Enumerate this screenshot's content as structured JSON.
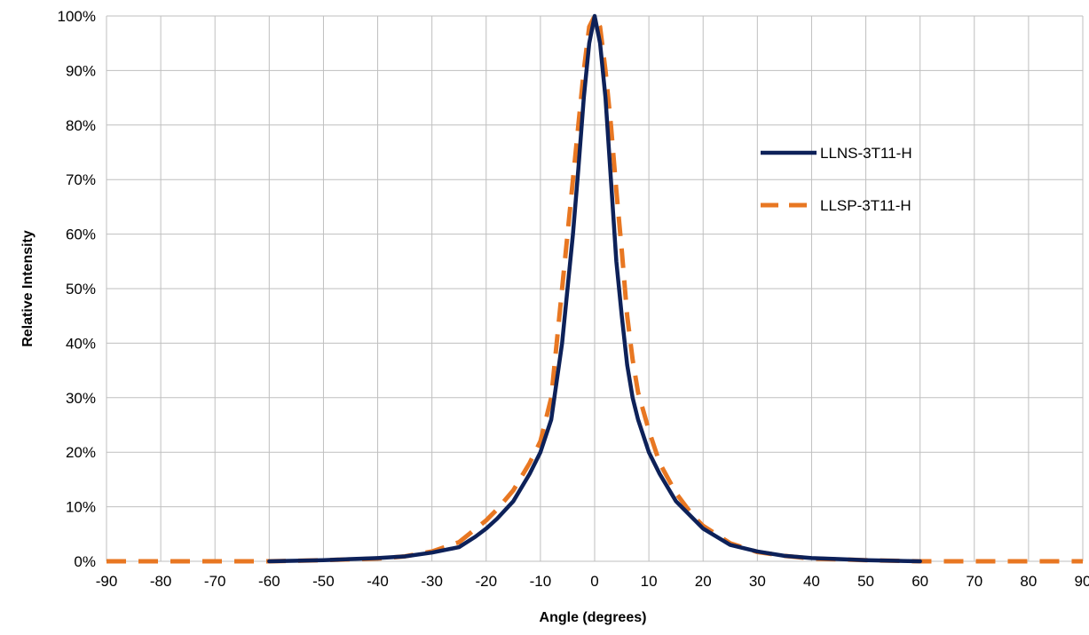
{
  "chart_data": {
    "type": "line",
    "title": "",
    "xlabel": "Angle (degrees)",
    "ylabel": "Relative Intensity",
    "xlim": [
      -90,
      90
    ],
    "ylim": [
      0,
      100
    ],
    "x_ticks": [
      "-90",
      "-80",
      "-70",
      "-60",
      "-50",
      "-40",
      "-30",
      "-20",
      "-10",
      "0",
      "10",
      "20",
      "30",
      "40",
      "50",
      "60",
      "70",
      "80",
      "90"
    ],
    "y_ticks": [
      "0%",
      "10%",
      "20%",
      "30%",
      "40%",
      "50%",
      "60%",
      "70%",
      "80%",
      "90%",
      "100%"
    ],
    "grid": true,
    "legend_position": "right",
    "series": [
      {
        "name": "LLNS-3T11-H",
        "color": "#0d2159",
        "style": "solid",
        "points": [
          [
            -60,
            0.0
          ],
          [
            -55,
            0.1
          ],
          [
            -50,
            0.2
          ],
          [
            -45,
            0.4
          ],
          [
            -40,
            0.6
          ],
          [
            -35,
            0.9
          ],
          [
            -30,
            1.6
          ],
          [
            -25,
            2.6
          ],
          [
            -22,
            4.5
          ],
          [
            -20,
            6.0
          ],
          [
            -18,
            7.8
          ],
          [
            -15,
            11.0
          ],
          [
            -12,
            16.0
          ],
          [
            -10,
            20.0
          ],
          [
            -8,
            26.0
          ],
          [
            -6,
            40.0
          ],
          [
            -5,
            50.0
          ],
          [
            -4,
            60.0
          ],
          [
            -3,
            72.0
          ],
          [
            -2,
            85.0
          ],
          [
            -1,
            95.0
          ],
          [
            0,
            100.0
          ],
          [
            1,
            95.0
          ],
          [
            2,
            85.0
          ],
          [
            3,
            70.0
          ],
          [
            4,
            55.0
          ],
          [
            5,
            45.0
          ],
          [
            6,
            36.0
          ],
          [
            7,
            30.0
          ],
          [
            8,
            26.0
          ],
          [
            10,
            20.0
          ],
          [
            12,
            16.0
          ],
          [
            15,
            11.0
          ],
          [
            18,
            8.0
          ],
          [
            20,
            6.0
          ],
          [
            25,
            3.0
          ],
          [
            30,
            1.8
          ],
          [
            35,
            1.0
          ],
          [
            40,
            0.6
          ],
          [
            45,
            0.4
          ],
          [
            50,
            0.2
          ],
          [
            55,
            0.1
          ],
          [
            60,
            0.0
          ]
        ]
      },
      {
        "name": "LLSP-3T11-H",
        "color": "#e87722",
        "style": "dashed",
        "points": [
          [
            -90,
            0.0
          ],
          [
            -80,
            0.0
          ],
          [
            -70,
            0.0
          ],
          [
            -60,
            0.0
          ],
          [
            -50,
            0.2
          ],
          [
            -40,
            0.5
          ],
          [
            -35,
            0.9
          ],
          [
            -30,
            1.8
          ],
          [
            -25,
            3.5
          ],
          [
            -20,
            7.5
          ],
          [
            -18,
            9.5
          ],
          [
            -15,
            13.0
          ],
          [
            -12,
            18.0
          ],
          [
            -10,
            22.0
          ],
          [
            -8,
            30.0
          ],
          [
            -7,
            40.0
          ],
          [
            -6,
            50.0
          ],
          [
            -5,
            60.0
          ],
          [
            -4,
            70.0
          ],
          [
            -3,
            80.0
          ],
          [
            -2,
            90.0
          ],
          [
            -1,
            98.0
          ],
          [
            0,
            100.0
          ],
          [
            1,
            98.0
          ],
          [
            2,
            90.0
          ],
          [
            3,
            80.0
          ],
          [
            4,
            68.0
          ],
          [
            5,
            57.0
          ],
          [
            6,
            45.0
          ],
          [
            7,
            37.0
          ],
          [
            8,
            31.0
          ],
          [
            10,
            24.0
          ],
          [
            12,
            18.0
          ],
          [
            15,
            12.5
          ],
          [
            18,
            8.5
          ],
          [
            20,
            6.5
          ],
          [
            25,
            3.3
          ],
          [
            30,
            1.7
          ],
          [
            35,
            1.0
          ],
          [
            40,
            0.5
          ],
          [
            50,
            0.2
          ],
          [
            60,
            0.0
          ],
          [
            70,
            0.0
          ],
          [
            80,
            0.0
          ],
          [
            90,
            0.0
          ]
        ]
      }
    ]
  }
}
